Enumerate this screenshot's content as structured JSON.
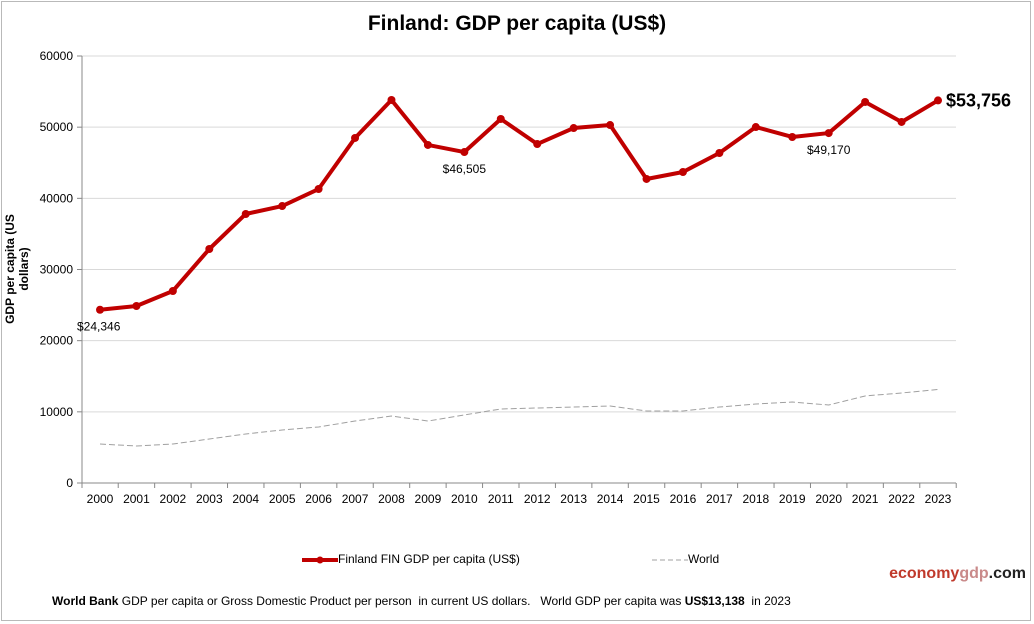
{
  "chart_data": {
    "type": "line",
    "title": "Finland: GDP per capita (US$)",
    "ylabel": "GDP per capita (US dollars)",
    "xlabel": "",
    "ylim": [
      0,
      60000
    ],
    "yticks": [
      "0",
      "10000",
      "20000",
      "30000",
      "40000",
      "50000",
      "60000"
    ],
    "grid": true,
    "legend_position": "bottom",
    "x": [
      "2000",
      "2001",
      "2002",
      "2003",
      "2004",
      "2005",
      "2006",
      "2007",
      "2008",
      "2009",
      "2010",
      "2011",
      "2012",
      "2013",
      "2014",
      "2015",
      "2016",
      "2017",
      "2018",
      "2019",
      "2020",
      "2021",
      "2022",
      "2023"
    ],
    "series": [
      {
        "name": "Finland FIN GDP per capita (US$)",
        "color": "#c00000",
        "values": [
          24346,
          24870,
          26980,
          32880,
          37800,
          38920,
          41310,
          48480,
          53820,
          47500,
          46505,
          51150,
          47630,
          49880,
          50300,
          42720,
          43700,
          46370,
          50020,
          48620,
          49170,
          53540,
          50730,
          53756
        ]
      },
      {
        "name": "World",
        "color": "#a0a0a0",
        "values": [
          5480,
          5200,
          5480,
          6180,
          6890,
          7450,
          7870,
          8710,
          9410,
          8710,
          9560,
          10400,
          10540,
          10680,
          10820,
          10120,
          10120,
          10680,
          11100,
          11380,
          10960,
          12230,
          12650,
          13138
        ]
      }
    ],
    "annotations": [
      {
        "x": "2000",
        "text": "$24,346"
      },
      {
        "x": "2010",
        "text": "$46,505"
      },
      {
        "x": "2020",
        "text": "$49,170"
      },
      {
        "x": "2023",
        "text": "$53,756"
      }
    ]
  },
  "brand": {
    "part1": "economy",
    "part2": "gdp",
    "part3": ".com"
  },
  "footer": {
    "source": "World Bank",
    "text1": " GDP per capita or Gross Domestic Product per person  in current US dollars.   World GDP per capita was ",
    "value": "US$13,138",
    "text2": "  in 2023"
  }
}
